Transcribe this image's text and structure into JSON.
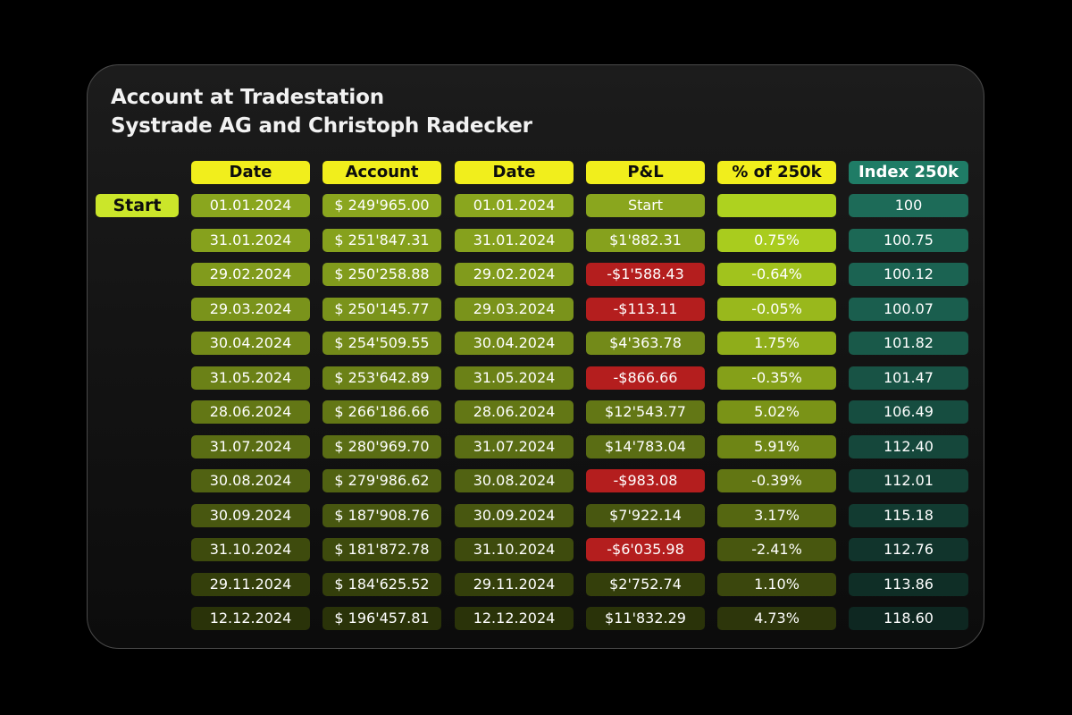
{
  "title": {
    "line1": "Account at Tradestation",
    "line2": "Systrade AG and Christoph Radecker"
  },
  "start_label": "Start",
  "headers": [
    "Date",
    "Account",
    "Date",
    "P&L",
    "% of 250k",
    "Index 250k"
  ],
  "rows": [
    {
      "date": "01.01.2024",
      "account": "$ 249'965.00",
      "date2": "01.01.2024",
      "pnl": "Start",
      "pct": "",
      "index": "100",
      "negative": false
    },
    {
      "date": "31.01.2024",
      "account": "$ 251'847.31",
      "date2": "31.01.2024",
      "pnl": "$1'882.31",
      "pct": "0.75%",
      "index": "100.75",
      "negative": false
    },
    {
      "date": "29.02.2024",
      "account": "$ 250'258.88",
      "date2": "29.02.2024",
      "pnl": "-$1'588.43",
      "pct": "-0.64%",
      "index": "100.12",
      "negative": true
    },
    {
      "date": "29.03.2024",
      "account": "$ 250'145.77",
      "date2": "29.03.2024",
      "pnl": "-$113.11",
      "pct": "-0.05%",
      "index": "100.07",
      "negative": true
    },
    {
      "date": "30.04.2024",
      "account": "$ 254'509.55",
      "date2": "30.04.2024",
      "pnl": "$4'363.78",
      "pct": "1.75%",
      "index": "101.82",
      "negative": false
    },
    {
      "date": "31.05.2024",
      "account": "$ 253'642.89",
      "date2": "31.05.2024",
      "pnl": "-$866.66",
      "pct": "-0.35%",
      "index": "101.47",
      "negative": true
    },
    {
      "date": "28.06.2024",
      "account": "$ 266'186.66",
      "date2": "28.06.2024",
      "pnl": "$12'543.77",
      "pct": "5.02%",
      "index": "106.49",
      "negative": false
    },
    {
      "date": "31.07.2024",
      "account": "$ 280'969.70",
      "date2": "31.07.2024",
      "pnl": "$14'783.04",
      "pct": "5.91%",
      "index": "112.40",
      "negative": false
    },
    {
      "date": "30.08.2024",
      "account": "$ 279'986.62",
      "date2": "30.08.2024",
      "pnl": "-$983.08",
      "pct": "-0.39%",
      "index": "112.01",
      "negative": true
    },
    {
      "date": "30.09.2024",
      "account": "$ 187'908.76",
      "date2": "30.09.2024",
      "pnl": "$7'922.14",
      "pct": "3.17%",
      "index": "115.18",
      "negative": false
    },
    {
      "date": "31.10.2024",
      "account": "$ 181'872.78",
      "date2": "31.10.2024",
      "pnl": "-$6'035.98",
      "pct": "-2.41%",
      "index": "112.76",
      "negative": true
    },
    {
      "date": "29.11.2024",
      "account": "$ 184'625.52",
      "date2": "29.11.2024",
      "pnl": "$2'752.74",
      "pct": "1.10%",
      "index": "113.86",
      "negative": false
    },
    {
      "date": "12.12.2024",
      "account": "$ 196'457.81",
      "date2": "12.12.2024",
      "pnl": "$11'832.29",
      "pct": "4.73%",
      "index": "118.60",
      "negative": false
    }
  ],
  "colors": {
    "header_yellow": "#f1ee1c",
    "index_header": "#1f7c66",
    "negative_pnl": "#b41e1e",
    "start_label": "#cbe62a"
  }
}
